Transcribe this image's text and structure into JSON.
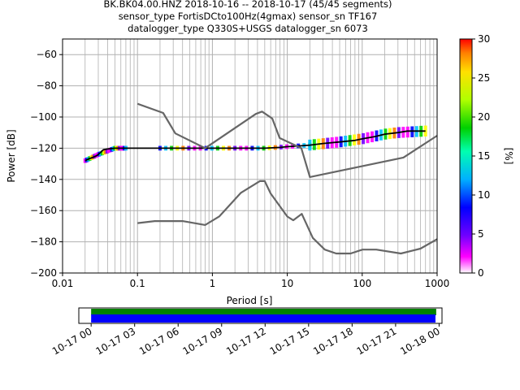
{
  "title_lines": [
    "BK.BK04.00.HNZ   2018-10-16 -- 2018-10-17  (45/45 segments)",
    "sensor_type FortisDCto100Hz(4gmax) sensor_sn TF167",
    "datalogger_type Q330S+USGS datalogger_sn 6073"
  ],
  "chart_data": [
    {
      "type": "heatmap",
      "subtype": "probabilistic-power-spectral-density",
      "xlabel": "Period [s]",
      "ylabel": "Power [dB]",
      "xscale": "log",
      "xlim": [
        0.01,
        1000
      ],
      "ylim": [
        -200,
        -50
      ],
      "x_ticks": [
        "0.01",
        "0.1",
        "1",
        "10",
        "100",
        "1000"
      ],
      "y_ticks": [
        "−60",
        "−80",
        "−100",
        "−120",
        "−140",
        "−160",
        "−180",
        "−200"
      ],
      "grid": true,
      "colorbar": {
        "label": "[%]",
        "range": [
          0,
          30
        ],
        "ticks": [
          "0",
          "5",
          "10",
          "15",
          "20",
          "25",
          "30"
        ],
        "colormap": "pqlx"
      },
      "series": [
        {
          "name": "",
          "style": "mode",
          "color": "#000000",
          "x": [
            0.02,
            0.022,
            0.025,
            0.028,
            0.03,
            0.035,
            0.04,
            0.05,
            0.07,
            0.1,
            0.2,
            0.5,
            1,
            2,
            5,
            8,
            10,
            15,
            20,
            30,
            50,
            80,
            100,
            150,
            200,
            300,
            400,
            500,
            700
          ],
          "y": [
            -128,
            -127,
            -126,
            -125,
            -124,
            -121,
            -120.5,
            -120,
            -120,
            -120,
            -120,
            -120,
            -120,
            -120,
            -120,
            -119.5,
            -119,
            -118.5,
            -118,
            -117,
            -116,
            -115,
            -114,
            -112.5,
            -111,
            -110,
            -109,
            -109,
            -109
          ]
        },
        {
          "name": "",
          "style": "noise-model-high",
          "color": "#666666",
          "x": [
            0.1,
            0.22,
            0.32,
            0.8,
            3.8,
            4.6,
            6.3,
            7.9,
            15.4,
            20,
            354.8,
            1000
          ],
          "y": [
            -91.5,
            -97.4,
            -110.5,
            -120,
            -98,
            -96.5,
            -101,
            -113.5,
            -120,
            -138.5,
            -126,
            -112
          ]
        },
        {
          "name": "",
          "style": "noise-model-low",
          "color": "#666666",
          "x": [
            0.1,
            0.17,
            0.4,
            0.8,
            1.24,
            2.4,
            4.3,
            5,
            6,
            10,
            12,
            15.6,
            21.9,
            31.6,
            45,
            70,
            101,
            154,
            328,
            600,
            1000
          ],
          "y": [
            -168,
            -166.7,
            -166.7,
            -169.2,
            -163.7,
            -148.6,
            -141.1,
            -141.1,
            -149,
            -163.8,
            -166.2,
            -162.1,
            -177.5,
            -185,
            -187.5,
            -187.5,
            -185,
            -185,
            -187.5,
            -184.4,
            -178.3
          ]
        }
      ],
      "color_bands": [
        {
          "x": [
            0.02,
            0.03,
            0.05,
            0.07
          ],
          "y": [
            -128,
            -124,
            -120,
            -120
          ],
          "spread": 1.5
        },
        {
          "x": [
            0.2,
            1,
            2,
            5,
            10,
            20
          ],
          "y": [
            -120,
            -120,
            -120,
            -120,
            -119,
            -118
          ],
          "spread": 1.5
        },
        {
          "x": [
            20,
            50,
            100,
            200,
            300,
            700
          ],
          "y": [
            -118,
            -116,
            -114,
            -111,
            -110,
            -109
          ],
          "spread": 3.5
        }
      ]
    },
    {
      "type": "bar",
      "subtype": "data-availability-timeline",
      "x_ticks": [
        "10-17 00",
        "10-17 03",
        "10-17 06",
        "10-17 09",
        "10-17 12",
        "10-17 15",
        "10-17 18",
        "10-17 21",
        "10-18 00"
      ],
      "xlim_hours": [
        -0.85,
        24.2
      ],
      "bars": [
        {
          "name": "",
          "color": "#008000",
          "start_hour": 0,
          "end_hour": 23.8,
          "lane": "top"
        },
        {
          "name": "",
          "color": "#0000ff",
          "start_hour": 0,
          "end_hour": 23.75,
          "lane": "bottom"
        }
      ]
    }
  ]
}
